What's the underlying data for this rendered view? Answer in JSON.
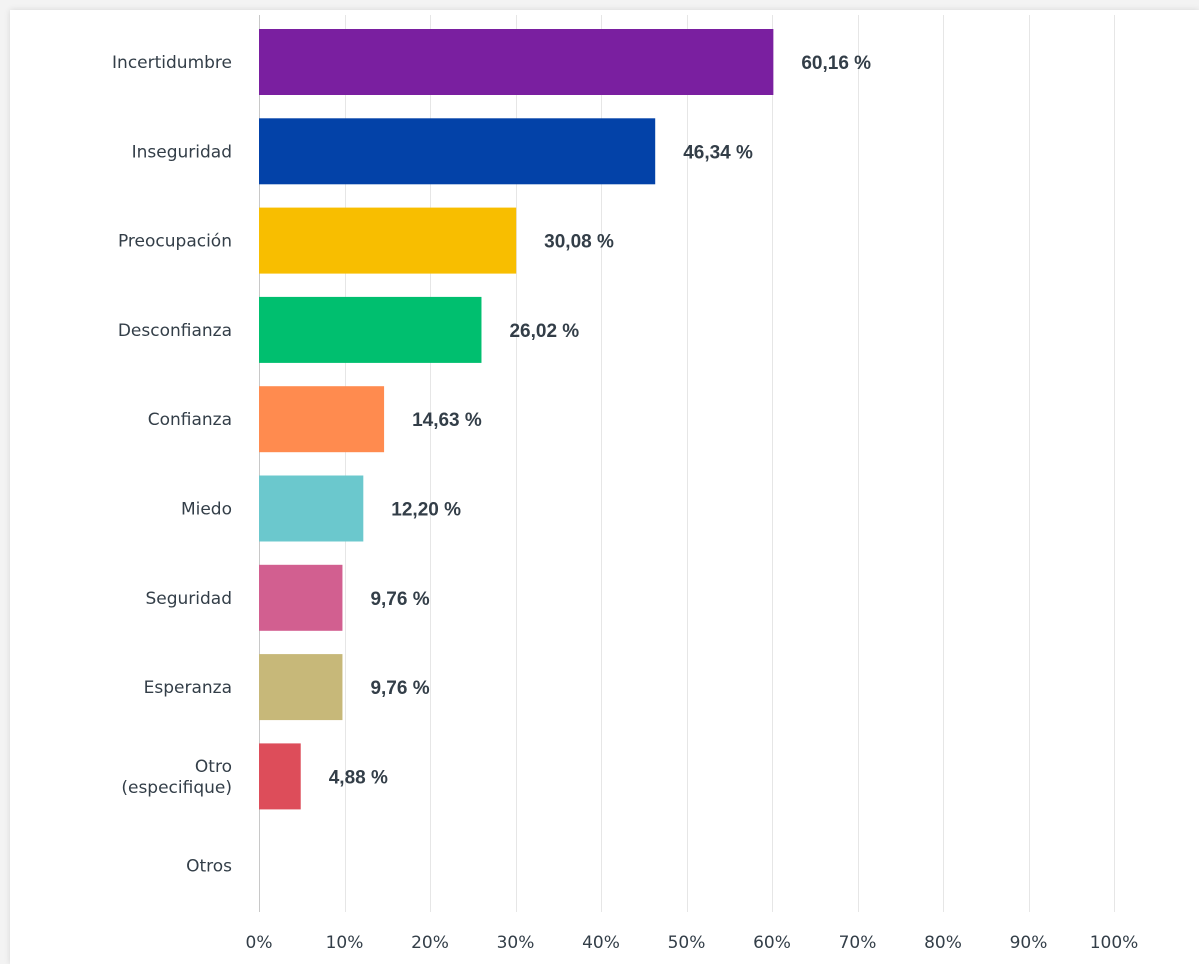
{
  "chart_data": {
    "type": "bar",
    "orientation": "horizontal",
    "title": "",
    "xlabel": "",
    "ylabel": "",
    "xlim": [
      0,
      100
    ],
    "grid": true,
    "categories": [
      "Incertidumbre",
      "Inseguridad",
      "Preocupación",
      "Desconfianza",
      "Confianza",
      "Miedo",
      "Seguridad",
      "Esperanza",
      "Otro (especifique)",
      "Otros"
    ],
    "category_label_lines": [
      [
        "Incertidumbre"
      ],
      [
        "Inseguridad"
      ],
      [
        "Preocupación"
      ],
      [
        "Desconfianza"
      ],
      [
        "Confianza"
      ],
      [
        "Miedo"
      ],
      [
        "Seguridad"
      ],
      [
        "Esperanza"
      ],
      [
        "Otro",
        "(especifique)"
      ],
      [
        "Otros"
      ]
    ],
    "values": [
      60.16,
      46.34,
      30.08,
      26.02,
      14.63,
      12.2,
      9.76,
      9.76,
      4.88,
      0
    ],
    "value_labels": [
      "60,16 %",
      "46,34 %",
      "30,08 %",
      "26,02 %",
      "14,63 %",
      "12,20 %",
      "9,76 %",
      "9,76 %",
      "4,88 %",
      ""
    ],
    "colors": [
      "#7a1fa0",
      "#0342a8",
      "#f8be00",
      "#00bf6f",
      "#ff8b4f",
      "#6bc8cd",
      "#d25f90",
      "#c7b879",
      "#dd4d5a",
      "#999999"
    ],
    "x_ticks": [
      "0%",
      "10%",
      "20%",
      "30%",
      "40%",
      "50%",
      "60%",
      "70%",
      "80%",
      "90%",
      "100%"
    ],
    "x_tick_values": [
      0,
      10,
      20,
      30,
      40,
      50,
      60,
      70,
      80,
      90,
      100
    ]
  }
}
